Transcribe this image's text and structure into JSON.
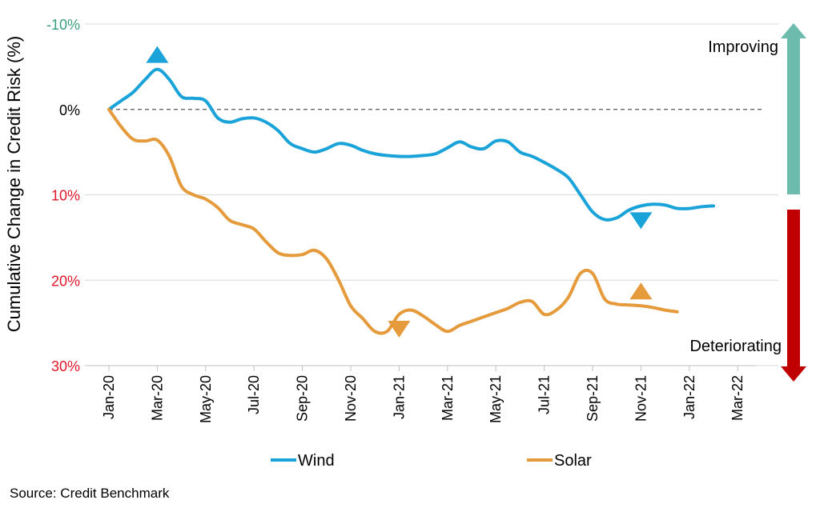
{
  "chart_data": {
    "type": "line",
    "ylabel": "Cumulative Change in Credit Risk (%)",
    "ylim": [
      -10,
      30
    ],
    "y_axis_inverted": true,
    "y_ticks": [
      {
        "value": -10,
        "label": "-10%",
        "color": "#3a9e7a"
      },
      {
        "value": 0,
        "label": "0%",
        "color": "#000000"
      },
      {
        "value": 10,
        "label": "10%",
        "color": "#e0162b"
      },
      {
        "value": 20,
        "label": "20%",
        "color": "#e0162b"
      },
      {
        "value": 30,
        "label": "30%",
        "color": "#e0162b"
      }
    ],
    "x_tick_labels": [
      "Jan-20",
      "Mar-20",
      "May-20",
      "Jul-20",
      "Sep-20",
      "Nov-20",
      "Jan-21",
      "Mar-21",
      "May-21",
      "Jul-21",
      "Sep-21",
      "Nov-21",
      "Jan-22",
      "Mar-22"
    ],
    "x_months_since_jan20": [
      0,
      0.5,
      1,
      1.5,
      2,
      2.5,
      3,
      3.5,
      4,
      4.5,
      5,
      5.5,
      6,
      6.5,
      7,
      7.5,
      8,
      8.5,
      9,
      9.5,
      10,
      10.5,
      11,
      11.5,
      12,
      12.5,
      13,
      13.5,
      14,
      14.5,
      15,
      15.5,
      16,
      16.5,
      17,
      17.5,
      18,
      18.5,
      19,
      19.5,
      20,
      20.5,
      21,
      21.5,
      22,
      22.5,
      23,
      23.5,
      24,
      24.5,
      25,
      25.5,
      26
    ],
    "series": [
      {
        "name": "Wind",
        "color": "#1aa3d9",
        "values": [
          0,
          -1,
          -2,
          -3.5,
          -4.7,
          -3.5,
          -1.5,
          -1.3,
          -1,
          1,
          1.5,
          1.1,
          1,
          1.5,
          2.5,
          4,
          4.6,
          5,
          4.6,
          4,
          4.2,
          4.8,
          5.2,
          5.4,
          5.5,
          5.5,
          5.4,
          5.2,
          4.5,
          3.8,
          4.4,
          4.6,
          3.7,
          3.8,
          5,
          5.5,
          6.2,
          7,
          8,
          10,
          12,
          12.9,
          12.7,
          11.8,
          11.3,
          11.1,
          11.2,
          11.6,
          11.6,
          11.4,
          11.3,
          null,
          null
        ]
      },
      {
        "name": "Solar",
        "color": "#e59a3b",
        "values": [
          0,
          2,
          3.5,
          3.7,
          3.6,
          5.5,
          9,
          10,
          10.5,
          11.5,
          13,
          13.5,
          14,
          15.5,
          16.8,
          17.1,
          17,
          16.5,
          17.5,
          20,
          23,
          24.5,
          26,
          26,
          24,
          23.5,
          24.2,
          25.2,
          26,
          25.3,
          24.8,
          24.3,
          23.8,
          23.3,
          22.6,
          22.5,
          24,
          23.5,
          22,
          19.2,
          19.2,
          22.2,
          22.8,
          22.9,
          23,
          23.2,
          23.5,
          23.7,
          null,
          null,
          null,
          null,
          null
        ]
      }
    ],
    "markers": [
      {
        "series": "Wind",
        "month": 2,
        "shape": "triangle-up",
        "color": "#1aa3d9"
      },
      {
        "series": "Wind",
        "month": 22,
        "shape": "triangle-down",
        "color": "#1aa3d9"
      },
      {
        "series": "Solar",
        "month": 12,
        "shape": "triangle-down",
        "color": "#e59a3b"
      },
      {
        "series": "Solar",
        "month": 22,
        "shape": "triangle-up",
        "color": "#e59a3b"
      }
    ],
    "reference_line": {
      "value": 0,
      "style": "dashed"
    },
    "side_annotations": {
      "improving": {
        "label": "Improving",
        "color": "#6dbbad"
      },
      "deteriorating": {
        "label": "Deteriorating",
        "color": "#c00000"
      }
    },
    "legend_position": "bottom",
    "grid": "horizontal"
  },
  "source": "Source: Credit Benchmark"
}
